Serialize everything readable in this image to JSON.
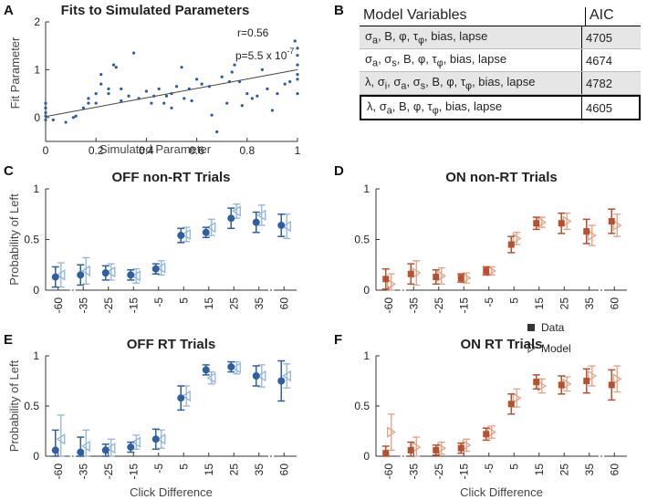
{
  "panels": {
    "A": "A",
    "B": "B",
    "C": "C",
    "D": "D",
    "E": "E",
    "F": "F"
  },
  "panel_a": {
    "title": "Fits to Simulated Parameters",
    "xlabel": "Simulated Parameter",
    "ylabel": "Fit Parameter",
    "r_text": "r=0.56",
    "p_text": "p=5.5 x 10",
    "p_exp": "-7"
  },
  "table": {
    "col_model": "Model Variables",
    "col_aic": "AIC",
    "rows": [
      {
        "aic": "4705"
      },
      {
        "aic": "4674"
      },
      {
        "aic": "4782"
      },
      {
        "aic": "4605"
      }
    ]
  },
  "legend": {
    "data": "Data",
    "model": "Model"
  },
  "colors": {
    "off_data": "#2e5fa3",
    "off_model": "#8fb4dc",
    "on_data": "#b8502f",
    "on_model": "#e2a084",
    "scatter": "#2a5aa8"
  },
  "chart_data": [
    {
      "type": "scatter",
      "panel": "A",
      "title": "Fits to Simulated Parameters",
      "xlabel": "Simulated Parameter",
      "ylabel": "Fit Parameter",
      "xlim": [
        0,
        1
      ],
      "ylim": [
        -0.5,
        2
      ],
      "xticks": [
        "0",
        "0.2",
        "0.4",
        "0.6",
        "0.8",
        "1"
      ],
      "yticks": [
        "0",
        "1",
        "2"
      ],
      "fit_line": {
        "x": [
          0,
          1
        ],
        "y": [
          0.02,
          1.0
        ]
      },
      "points": [
        [
          0,
          0.3
        ],
        [
          0,
          0.2
        ],
        [
          0,
          0.1
        ],
        [
          0,
          0.03
        ],
        [
          0,
          -0.05
        ],
        [
          0.03,
          -0.05
        ],
        [
          0.08,
          -0.1
        ],
        [
          0.11,
          0.0
        ],
        [
          0.12,
          0.03
        ],
        [
          0.15,
          0.2
        ],
        [
          0.17,
          0.4
        ],
        [
          0.17,
          0.3
        ],
        [
          0.2,
          0.5
        ],
        [
          0.2,
          0.3
        ],
        [
          0.22,
          0.9
        ],
        [
          0.22,
          0.7
        ],
        [
          0.25,
          0.5
        ],
        [
          0.25,
          0.6
        ],
        [
          0.27,
          1.1
        ],
        [
          0.28,
          1.05
        ],
        [
          0.3,
          0.35
        ],
        [
          0.3,
          0.6
        ],
        [
          0.33,
          0.45
        ],
        [
          0.35,
          1.35
        ],
        [
          0.37,
          0.4
        ],
        [
          0.4,
          0.55
        ],
        [
          0.42,
          0.3
        ],
        [
          0.43,
          0.45
        ],
        [
          0.45,
          0.6
        ],
        [
          0.47,
          0.3
        ],
        [
          0.48,
          0.45
        ],
        [
          0.5,
          0.5
        ],
        [
          0.5,
          0.2
        ],
        [
          0.52,
          0.65
        ],
        [
          0.54,
          1.05
        ],
        [
          0.55,
          0.4
        ],
        [
          0.57,
          0.6
        ],
        [
          0.58,
          0.35
        ],
        [
          0.6,
          0.8
        ],
        [
          0.62,
          0.7
        ],
        [
          0.65,
          0.65
        ],
        [
          0.66,
          0.05
        ],
        [
          0.68,
          -0.3
        ],
        [
          0.7,
          0.85
        ],
        [
          0.72,
          0.3
        ],
        [
          0.73,
          0.75
        ],
        [
          0.74,
          0.95
        ],
        [
          0.75,
          1.1
        ],
        [
          0.77,
          0.75
        ],
        [
          0.78,
          0.25
        ],
        [
          0.8,
          0.5
        ],
        [
          0.82,
          0.4
        ],
        [
          0.84,
          0.45
        ],
        [
          0.86,
          1.0
        ],
        [
          0.88,
          0.6
        ],
        [
          0.9,
          0.15
        ],
        [
          0.92,
          0.5
        ],
        [
          0.95,
          0.7
        ],
        [
          0.97,
          0.75
        ],
        [
          0.99,
          1.6
        ],
        [
          1,
          1.45
        ],
        [
          1,
          1.3
        ],
        [
          1,
          1.1
        ],
        [
          1,
          0.9
        ],
        [
          1,
          0.8
        ],
        [
          1,
          0.5
        ]
      ]
    },
    {
      "type": "errorbar",
      "panel": "C",
      "title": "OFF non-RT Trials",
      "ylabel": "Probability of Left",
      "ylim": [
        0,
        1
      ],
      "yticks": [
        "0",
        "0.5",
        "1"
      ],
      "categories": [
        "-60",
        "-35",
        "-25",
        "-15",
        "-5",
        "5",
        "15",
        "25",
        "35",
        "60"
      ],
      "series": [
        {
          "name": "Data",
          "values": [
            0.13,
            0.15,
            0.17,
            0.15,
            0.21,
            0.54,
            0.57,
            0.71,
            0.67,
            0.64
          ],
          "err": [
            0.1,
            0.1,
            0.07,
            0.05,
            0.05,
            0.07,
            0.05,
            0.1,
            0.1,
            0.11
          ]
        },
        {
          "name": "Model",
          "values": [
            0.15,
            0.19,
            0.18,
            0.14,
            0.22,
            0.55,
            0.62,
            0.78,
            0.74,
            0.63
          ],
          "err": [
            0.12,
            0.13,
            0.08,
            0.07,
            0.07,
            0.07,
            0.08,
            0.07,
            0.1,
            0.12
          ]
        }
      ]
    },
    {
      "type": "errorbar",
      "panel": "D",
      "title": "ON non-RT Trials",
      "ylim": [
        0,
        1
      ],
      "yticks": [
        "0",
        "0.5",
        "1"
      ],
      "categories": [
        "-60",
        "-35",
        "-25",
        "-15",
        "-5",
        "5",
        "15",
        "25",
        "35",
        "60"
      ],
      "series": [
        {
          "name": "Data",
          "values": [
            0.11,
            0.16,
            0.13,
            0.12,
            0.19,
            0.45,
            0.66,
            0.66,
            0.58,
            0.68
          ],
          "err": [
            0.1,
            0.1,
            0.07,
            0.04,
            0.04,
            0.08,
            0.06,
            0.1,
            0.12,
            0.12
          ]
        },
        {
          "name": "Model",
          "values": [
            0.06,
            0.17,
            0.14,
            0.12,
            0.19,
            0.51,
            0.67,
            0.68,
            0.54,
            0.64
          ],
          "err": [
            0.1,
            0.12,
            0.08,
            0.05,
            0.04,
            0.06,
            0.05,
            0.08,
            0.1,
            0.11
          ]
        }
      ]
    },
    {
      "type": "errorbar",
      "panel": "E",
      "title": "OFF RT Trials",
      "xlabel": "Click Difference",
      "ylabel": "Probability of Left",
      "ylim": [
        0,
        1
      ],
      "yticks": [
        "0",
        "0.5",
        "1"
      ],
      "categories": [
        "-60",
        "-35",
        "-25",
        "-15",
        "-5",
        "5",
        "15",
        "25",
        "35",
        "60"
      ],
      "series": [
        {
          "name": "Data",
          "values": [
            0.06,
            0.04,
            0.06,
            0.09,
            0.17,
            0.58,
            0.86,
            0.89,
            0.8,
            0.75
          ],
          "err": [
            0.2,
            0.15,
            0.06,
            0.05,
            0.1,
            0.12,
            0.05,
            0.05,
            0.1,
            0.2
          ]
        },
        {
          "name": "Model",
          "values": [
            0.17,
            0.1,
            0.08,
            0.14,
            0.17,
            0.6,
            0.78,
            0.88,
            0.8,
            0.8
          ],
          "err": [
            0.24,
            0.16,
            0.09,
            0.07,
            0.09,
            0.1,
            0.06,
            0.06,
            0.11,
            0.12
          ]
        }
      ]
    },
    {
      "type": "errorbar",
      "panel": "F",
      "title": "ON RT Trials",
      "xlabel": "Click Difference",
      "ylim": [
        0,
        1
      ],
      "yticks": [
        "0",
        "0.5",
        "1"
      ],
      "categories": [
        "-60",
        "-35",
        "-25",
        "-15",
        "-5",
        "5",
        "15",
        "25",
        "35",
        "60"
      ],
      "series": [
        {
          "name": "Data",
          "values": [
            0.03,
            0.06,
            0.06,
            0.08,
            0.22,
            0.52,
            0.74,
            0.71,
            0.75,
            0.71
          ],
          "err": [
            0.07,
            0.08,
            0.05,
            0.05,
            0.06,
            0.1,
            0.07,
            0.09,
            0.12,
            0.15
          ]
        },
        {
          "name": "Model",
          "values": [
            0.24,
            0.09,
            0.08,
            0.11,
            0.24,
            0.58,
            0.7,
            0.72,
            0.8,
            0.77
          ],
          "err": [
            0.18,
            0.1,
            0.06,
            0.06,
            0.06,
            0.09,
            0.07,
            0.07,
            0.1,
            0.13
          ]
        }
      ]
    }
  ]
}
